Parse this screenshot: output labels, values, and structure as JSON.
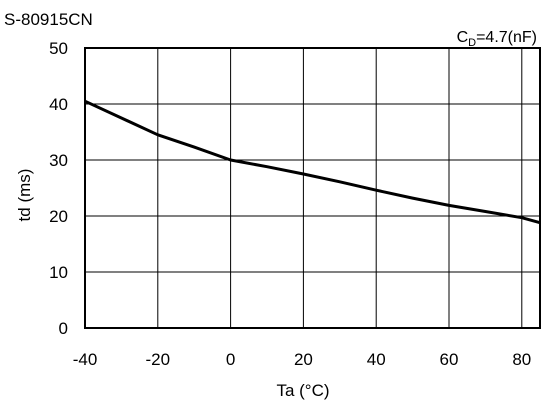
{
  "chart_data": {
    "type": "line",
    "title": "S-80915CN",
    "condition": {
      "main": "C",
      "sub": "D",
      "rest": "=4.7(nF)"
    },
    "xlabel": "Ta (°C)",
    "ylabel": "td (ms)",
    "xlim": [
      -40,
      85
    ],
    "ylim": [
      0,
      50
    ],
    "xticks": [
      -40,
      -20,
      0,
      20,
      40,
      60,
      80
    ],
    "yticks": [
      0,
      10,
      20,
      30,
      40,
      50
    ],
    "grid": true,
    "series": [
      {
        "x": [
          -40,
          -30,
          -20,
          -10,
          0,
          10,
          20,
          30,
          40,
          50,
          60,
          70,
          80,
          85
        ],
        "y": [
          40.5,
          37.5,
          34.5,
          32.3,
          30.0,
          28.8,
          27.5,
          26.1,
          24.6,
          23.2,
          21.9,
          20.8,
          19.7,
          18.8
        ]
      }
    ]
  }
}
